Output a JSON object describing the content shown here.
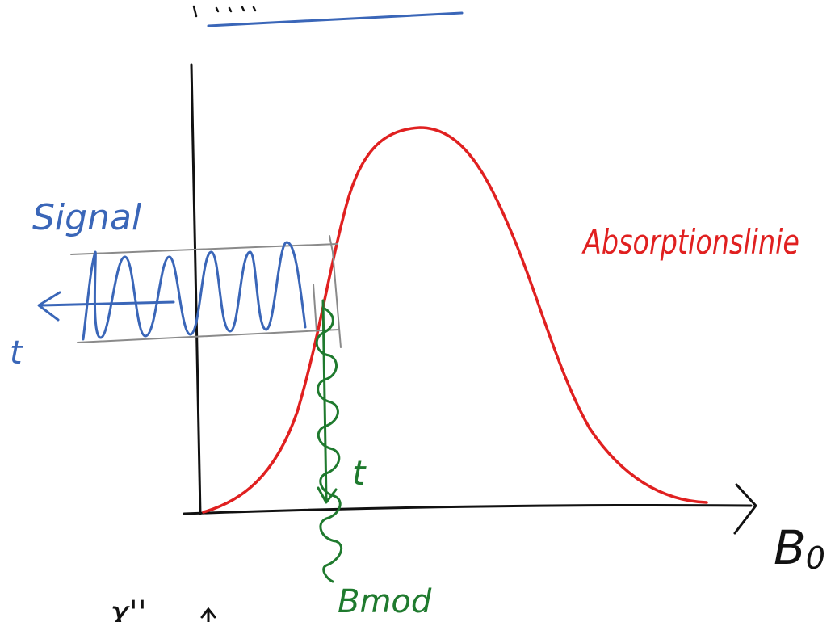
{
  "labels": {
    "signal": "Signal",
    "time_signal": "t",
    "absorption": "Absorptionslinie",
    "time_mod": "t",
    "modulation": "Bmod",
    "field": "B",
    "field_subscript": "0",
    "bottom_partial": "χ''"
  },
  "colors": {
    "axes": "#111111",
    "absorption": "#e02020",
    "signal": "#3a66b8",
    "modulation": "#1f7a2e",
    "guides": "#8a8a8a"
  }
}
